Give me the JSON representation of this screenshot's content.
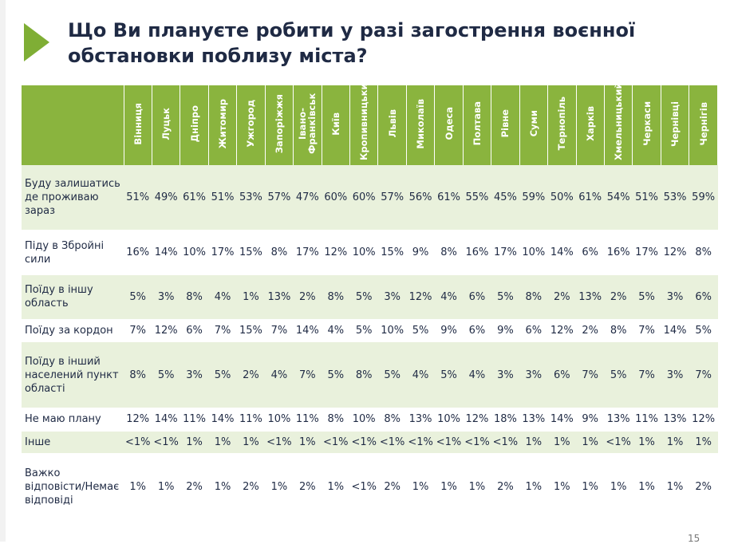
{
  "slide": {
    "title": "Що Ви плануєте робити у разі загострення воєнної обстановки поблизу міста?",
    "page_number": "15",
    "accent_color": "#7fae35",
    "header_color": "#8ab43e"
  },
  "table": {
    "columns": [
      "Вінниця",
      "Луцьк",
      "Дніпро",
      "Житомир",
      "Ужгород",
      "Запоріжжя",
      "Івано-Франківськ",
      "Київ",
      "Кропивницький",
      "Львів",
      "Миколаїв",
      "Одеса",
      "Полтава",
      "Рівне",
      "Суми",
      "Тернопіль",
      "Харків",
      "Хмельницький",
      "Черкаси",
      "Чернівці",
      "Чернігів"
    ],
    "rows": [
      {
        "label": "Буду залишатись де проживаю зараз",
        "values": [
          "51%",
          "49%",
          "61%",
          "51%",
          "53%",
          "57%",
          "47%",
          "60%",
          "60%",
          "57%",
          "56%",
          "61%",
          "55%",
          "45%",
          "59%",
          "50%",
          "61%",
          "54%",
          "51%",
          "53%",
          "59%"
        ]
      },
      {
        "label": "Піду в Збройні сили",
        "values": [
          "16%",
          "14%",
          "10%",
          "17%",
          "15%",
          "8%",
          "17%",
          "12%",
          "10%",
          "15%",
          "9%",
          "8%",
          "16%",
          "17%",
          "10%",
          "14%",
          "6%",
          "16%",
          "17%",
          "12%",
          "8%"
        ]
      },
      {
        "label": "Поїду в іншу область",
        "values": [
          "5%",
          "3%",
          "8%",
          "4%",
          "1%",
          "13%",
          "2%",
          "8%",
          "5%",
          "3%",
          "12%",
          "4%",
          "6%",
          "5%",
          "8%",
          "2%",
          "13%",
          "2%",
          "5%",
          "3%",
          "6%"
        ]
      },
      {
        "label": "Поїду за кордон",
        "values": [
          "7%",
          "12%",
          "6%",
          "7%",
          "15%",
          "7%",
          "14%",
          "4%",
          "5%",
          "10%",
          "5%",
          "9%",
          "6%",
          "9%",
          "6%",
          "12%",
          "2%",
          "8%",
          "7%",
          "14%",
          "5%"
        ]
      },
      {
        "label": "Поїду в інший населений пункт області",
        "values": [
          "8%",
          "5%",
          "3%",
          "5%",
          "2%",
          "4%",
          "7%",
          "5%",
          "8%",
          "5%",
          "4%",
          "5%",
          "4%",
          "3%",
          "3%",
          "6%",
          "7%",
          "5%",
          "7%",
          "3%",
          "7%"
        ]
      },
      {
        "label": "Не маю плану",
        "values": [
          "12%",
          "14%",
          "11%",
          "14%",
          "11%",
          "10%",
          "11%",
          "8%",
          "10%",
          "8%",
          "13%",
          "10%",
          "12%",
          "18%",
          "13%",
          "14%",
          "9%",
          "13%",
          "11%",
          "13%",
          "12%"
        ]
      },
      {
        "label": "Інше",
        "values": [
          "<1%",
          "<1%",
          "1%",
          "1%",
          "1%",
          "<1%",
          "1%",
          "<1%",
          "<1%",
          "<1%",
          "<1%",
          "<1%",
          "<1%",
          "<1%",
          "1%",
          "1%",
          "1%",
          "<1%",
          "1%",
          "1%",
          "1%"
        ]
      },
      {
        "label": "Важко відповісти/Немає відповіді",
        "values": [
          "1%",
          "1%",
          "2%",
          "1%",
          "2%",
          "1%",
          "2%",
          "1%",
          "<1%",
          "2%",
          "1%",
          "1%",
          "1%",
          "2%",
          "1%",
          "1%",
          "1%",
          "1%",
          "1%",
          "1%",
          "2%"
        ]
      }
    ]
  }
}
